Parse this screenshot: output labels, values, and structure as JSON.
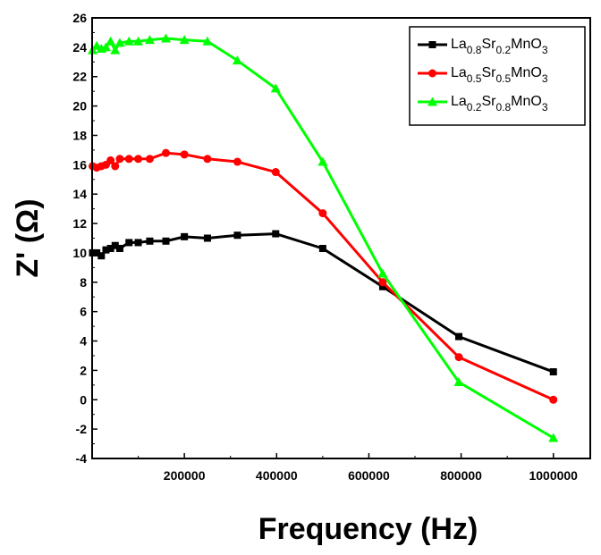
{
  "chart_data": {
    "type": "line",
    "xlabel": "Frequency (Hz)",
    "ylabel": "Z' (Ω)",
    "xlim": [
      0,
      1080000
    ],
    "ylim": [
      -4,
      26
    ],
    "x_ticks": [
      200000,
      400000,
      600000,
      800000,
      1000000
    ],
    "x_tick_labels": [
      "200000",
      "400000",
      "600000",
      "800000",
      "1000000"
    ],
    "y_ticks": [
      -4,
      -2,
      0,
      2,
      4,
      6,
      8,
      10,
      12,
      14,
      16,
      18,
      20,
      22,
      24,
      26
    ],
    "y_tick_labels": [
      "-4",
      "-2",
      "0",
      "2",
      "4",
      "6",
      "8",
      "10",
      "12",
      "14",
      "16",
      "18",
      "20",
      "22",
      "24",
      "26"
    ],
    "legend_position": "top-right",
    "series": [
      {
        "name": "La0.8Sr0.2MnO3",
        "label": {
          "base1": "La",
          "sub1": "0.8",
          "base2": "Sr",
          "sub2": "0.2",
          "base3": "MnO",
          "sub3": "3"
        },
        "color": "#000000",
        "marker": "square",
        "x": [
          1000,
          10000,
          20000,
          30000,
          40000,
          50000,
          60000,
          80000,
          100000,
          125000,
          160000,
          200000,
          250000,
          315000,
          398000,
          500000,
          630000,
          795000,
          1000000
        ],
        "y": [
          10.0,
          10.0,
          9.8,
          10.2,
          10.3,
          10.5,
          10.3,
          10.7,
          10.7,
          10.8,
          10.8,
          11.1,
          11.0,
          11.2,
          11.3,
          10.3,
          7.7,
          4.3,
          1.9
        ]
      },
      {
        "name": "La0.5Sr0.5MnO3",
        "label": {
          "base1": "La",
          "sub1": "0.5",
          "base2": "Sr",
          "sub2": "0.5",
          "base3": "MnO",
          "sub3": "3"
        },
        "color": "#ff0000",
        "marker": "circle",
        "x": [
          1000,
          10000,
          20000,
          30000,
          40000,
          50000,
          60000,
          80000,
          100000,
          125000,
          160000,
          200000,
          250000,
          315000,
          398000,
          500000,
          630000,
          795000,
          1000000
        ],
        "y": [
          15.9,
          15.8,
          15.9,
          16.0,
          16.3,
          15.9,
          16.4,
          16.4,
          16.4,
          16.4,
          16.8,
          16.7,
          16.4,
          16.2,
          15.5,
          12.7,
          8.0,
          2.9,
          0.0
        ]
      },
      {
        "name": "La0.2Sr0.8MnO3",
        "label": {
          "base1": "La",
          "sub1": "0.2",
          "base2": "Sr",
          "sub2": "0.8",
          "base3": "MnO",
          "sub3": "3"
        },
        "color": "#00ff00",
        "marker": "triangle",
        "x": [
          1000,
          10000,
          20000,
          30000,
          40000,
          50000,
          60000,
          80000,
          100000,
          125000,
          160000,
          200000,
          250000,
          315000,
          398000,
          500000,
          630000,
          795000,
          1000000
        ],
        "y": [
          23.8,
          24.1,
          23.9,
          24.0,
          24.4,
          23.8,
          24.3,
          24.4,
          24.4,
          24.5,
          24.6,
          24.5,
          24.4,
          23.1,
          21.2,
          16.2,
          8.6,
          1.2,
          -2.6
        ]
      }
    ]
  }
}
